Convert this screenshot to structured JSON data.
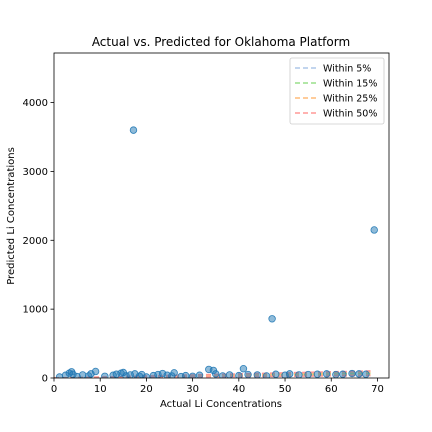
{
  "chart_data": {
    "type": "scatter",
    "title": "Actual vs. Predicted for Oklahoma Platform",
    "xlabel": "Actual Li Concentrations",
    "ylabel": "Predicted Li Concentrations",
    "xlim": [
      0,
      72.5
    ],
    "ylim": [
      0,
      4720
    ],
    "xticks": [
      0,
      10,
      20,
      30,
      40,
      50,
      60,
      70
    ],
    "yticks": [
      0,
      1000,
      2000,
      3000,
      4000
    ],
    "grid": false,
    "legend_position": "top-right",
    "point_color": "#1f77b4",
    "points": [
      {
        "x": 1.2,
        "y": 15
      },
      {
        "x": 2.5,
        "y": 40
      },
      {
        "x": 3.3,
        "y": 70
      },
      {
        "x": 3.8,
        "y": 90
      },
      {
        "x": 4.1,
        "y": 55
      },
      {
        "x": 5.0,
        "y": 20
      },
      {
        "x": 6.2,
        "y": 45
      },
      {
        "x": 7.5,
        "y": 30
      },
      {
        "x": 8.0,
        "y": 60
      },
      {
        "x": 9.0,
        "y": 95
      },
      {
        "x": 11.0,
        "y": 25
      },
      {
        "x": 12.8,
        "y": 40
      },
      {
        "x": 13.5,
        "y": 55
      },
      {
        "x": 14.5,
        "y": 70
      },
      {
        "x": 15.0,
        "y": 80
      },
      {
        "x": 15.6,
        "y": 30
      },
      {
        "x": 16.5,
        "y": 45
      },
      {
        "x": 17.2,
        "y": 3600
      },
      {
        "x": 17.5,
        "y": 60
      },
      {
        "x": 18.5,
        "y": 25
      },
      {
        "x": 19.0,
        "y": 50
      },
      {
        "x": 20.0,
        "y": 15
      },
      {
        "x": 21.5,
        "y": 35
      },
      {
        "x": 22.5,
        "y": 50
      },
      {
        "x": 23.5,
        "y": 65
      },
      {
        "x": 24.5,
        "y": 40
      },
      {
        "x": 25.5,
        "y": 30
      },
      {
        "x": 26.0,
        "y": 75
      },
      {
        "x": 27.5,
        "y": 20
      },
      {
        "x": 28.5,
        "y": 35
      },
      {
        "x": 30.0,
        "y": 25
      },
      {
        "x": 31.5,
        "y": 40
      },
      {
        "x": 33.5,
        "y": 125
      },
      {
        "x": 34.5,
        "y": 110
      },
      {
        "x": 35.0,
        "y": 60
      },
      {
        "x": 36.5,
        "y": 30
      },
      {
        "x": 38.0,
        "y": 45
      },
      {
        "x": 40.0,
        "y": 35
      },
      {
        "x": 41.0,
        "y": 135
      },
      {
        "x": 42.0,
        "y": 50
      },
      {
        "x": 44.0,
        "y": 45
      },
      {
        "x": 46.0,
        "y": 30
      },
      {
        "x": 47.2,
        "y": 860
      },
      {
        "x": 48.0,
        "y": 55
      },
      {
        "x": 50.0,
        "y": 40
      },
      {
        "x": 51.0,
        "y": 60
      },
      {
        "x": 53.0,
        "y": 45
      },
      {
        "x": 55.0,
        "y": 50
      },
      {
        "x": 57.0,
        "y": 55
      },
      {
        "x": 59.0,
        "y": 60
      },
      {
        "x": 61.0,
        "y": 50
      },
      {
        "x": 62.5,
        "y": 55
      },
      {
        "x": 64.5,
        "y": 65
      },
      {
        "x": 66.0,
        "y": 60
      },
      {
        "x": 67.5,
        "y": 55
      },
      {
        "x": 69.3,
        "y": 2150
      }
    ],
    "bands": [
      {
        "name": "Within 5%",
        "fraction": 0.05,
        "color": "#aec7e8"
      },
      {
        "name": "Within 15%",
        "fraction": 0.15,
        "color": "#98df8a"
      },
      {
        "name": "Within 25%",
        "fraction": 0.25,
        "color": "#ffbb78"
      },
      {
        "name": "Within 50%",
        "fraction": 0.5,
        "color": "#ff9896"
      }
    ]
  }
}
